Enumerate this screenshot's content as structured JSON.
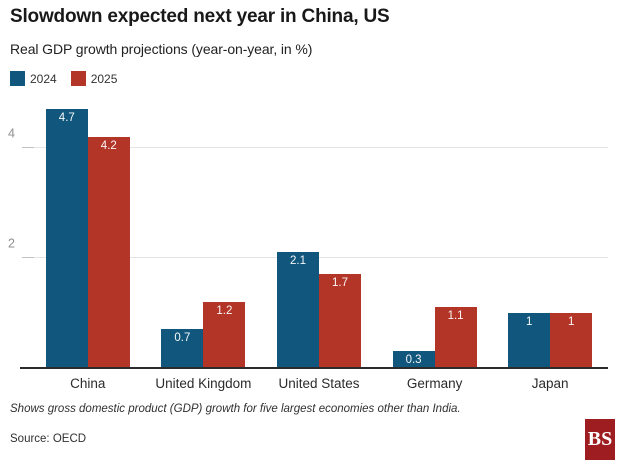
{
  "header": {
    "title": "Slowdown expected next year in China, US",
    "subtitle": "Real GDP growth projections (year-on-year, in %)"
  },
  "legend": [
    {
      "label": "2024",
      "color": "#11567C"
    },
    {
      "label": "2025",
      "color": "#B23527"
    }
  ],
  "chart_data": {
    "type": "bar",
    "title": "Slowdown expected next year in China, US",
    "subtitle": "Real GDP growth projections (year-on-year, in %)",
    "categories": [
      "China",
      "United Kingdom",
      "United States",
      "Germany",
      "Japan"
    ],
    "series": [
      {
        "name": "2024",
        "color": "#11567C",
        "values": [
          4.7,
          0.7,
          2.1,
          0.3,
          1
        ],
        "labels": [
          "4.7",
          "0.7",
          "2.1",
          "0.3",
          "1"
        ]
      },
      {
        "name": "2025",
        "color": "#B23527",
        "values": [
          4.2,
          1.2,
          1.7,
          1.1,
          1
        ],
        "labels": [
          "4.2",
          "1.2",
          "1.7",
          "1.1",
          "1"
        ]
      }
    ],
    "xlabel": "",
    "ylabel": "",
    "ylim": [
      0,
      4.9
    ],
    "yticks": [
      2,
      4
    ],
    "grid": true,
    "legend_position": "top-left",
    "value_labels": "inside-top, white"
  },
  "footer": {
    "note": "Shows gross domestic product (GDP) growth for five largest economies other than India.",
    "source": "Source: OECD",
    "logo_text": "BS",
    "logo_color": "#9E1D20"
  }
}
